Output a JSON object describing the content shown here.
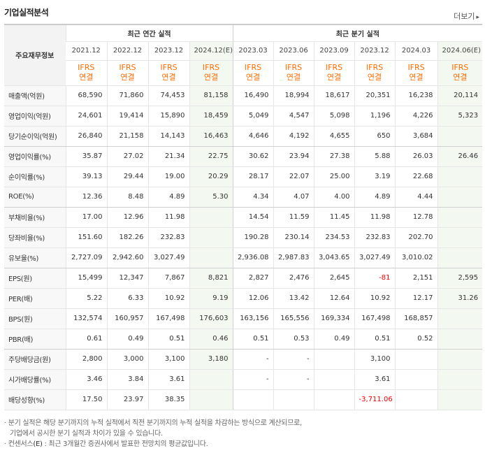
{
  "header": {
    "title": "기업실적분석",
    "more_label": "더보기",
    "more_arrow": "▸"
  },
  "table": {
    "label_header": "주요재무정보",
    "group_annual": "최근 연간 실적",
    "group_quarter": "최근 분기 실적",
    "periods": [
      "2021.12",
      "2022.12",
      "2023.12",
      "2024.12(E)",
      "2023.03",
      "2023.06",
      "2023.09",
      "2023.12",
      "2024.03",
      "2024.06(E)"
    ],
    "std_top": "IFRS",
    "std_bottom": "연결",
    "rows": [
      {
        "label": "매출액(억원)",
        "values": [
          "68,590",
          "71,860",
          "74,453",
          "81,158",
          "16,490",
          "18,994",
          "18,617",
          "20,351",
          "16,238",
          "20,114"
        ]
      },
      {
        "label": "영업이익(억원)",
        "values": [
          "24,601",
          "19,414",
          "15,890",
          "18,459",
          "5,049",
          "4,547",
          "5,098",
          "1,196",
          "4,226",
          "5,323"
        ]
      },
      {
        "label": "당기순이익(억원)",
        "values": [
          "26,840",
          "21,158",
          "14,143",
          "16,463",
          "4,646",
          "4,192",
          "4,655",
          "650",
          "3,684",
          ""
        ]
      },
      {
        "label": "영업이익률(%)",
        "values": [
          "35.87",
          "27.02",
          "21.34",
          "22.75",
          "30.62",
          "23.94",
          "27.38",
          "5.88",
          "26.03",
          "26.46"
        ]
      },
      {
        "label": "순이익률(%)",
        "values": [
          "39.13",
          "29.44",
          "19.00",
          "20.29",
          "28.17",
          "22.07",
          "25.00",
          "3.19",
          "22.68",
          ""
        ]
      },
      {
        "label": "ROE(%)",
        "values": [
          "12.36",
          "8.48",
          "4.89",
          "5.30",
          "4.34",
          "4.07",
          "4.00",
          "4.89",
          "4.44",
          ""
        ]
      },
      {
        "label": "부채비율(%)",
        "values": [
          "17.00",
          "12.96",
          "11.98",
          "",
          "14.54",
          "11.59",
          "11.45",
          "11.98",
          "12.78",
          ""
        ]
      },
      {
        "label": "당좌비율(%)",
        "values": [
          "151.60",
          "182.26",
          "232.83",
          "",
          "190.28",
          "230.14",
          "234.53",
          "232.83",
          "202.70",
          ""
        ]
      },
      {
        "label": "유보율(%)",
        "values": [
          "2,727.09",
          "2,942.60",
          "3,027.49",
          "",
          "2,936.08",
          "2,987.83",
          "3,043.65",
          "3,027.49",
          "3,010.02",
          ""
        ]
      },
      {
        "label": "EPS(원)",
        "values": [
          "15,499",
          "12,347",
          "7,867",
          "8,821",
          "2,827",
          "2,476",
          "2,645",
          "-81",
          "2,151",
          "2,595"
        ]
      },
      {
        "label": "PER(배)",
        "values": [
          "5.22",
          "6.33",
          "10.92",
          "9.19",
          "12.06",
          "13.42",
          "12.64",
          "10.92",
          "12.17",
          "31.26"
        ]
      },
      {
        "label": "BPS(원)",
        "values": [
          "132,574",
          "160,957",
          "167,498",
          "176,603",
          "163,156",
          "165,556",
          "169,334",
          "167,498",
          "168,857",
          ""
        ]
      },
      {
        "label": "PBR(배)",
        "values": [
          "0.61",
          "0.49",
          "0.51",
          "0.46",
          "0.51",
          "0.53",
          "0.49",
          "0.51",
          "0.52",
          ""
        ]
      },
      {
        "label": "주당배당금(원)",
        "values": [
          "2,800",
          "3,000",
          "3,100",
          "3,180",
          "-",
          "-",
          "",
          "3,100",
          "",
          ""
        ]
      },
      {
        "label": "시가배당률(%)",
        "values": [
          "3.46",
          "3.84",
          "3.61",
          "",
          "-",
          "-",
          "",
          "3.61",
          "",
          ""
        ]
      },
      {
        "label": "배당성향(%)",
        "values": [
          "17.50",
          "23.97",
          "38.35",
          "",
          "",
          "",
          "",
          "-3,711.06",
          "",
          ""
        ]
      }
    ]
  },
  "notes": {
    "line1": "· 분기 실적은 해당 분기까지의 누적 실적에서 직전 분기까지의 누적 실적을 차감하는 방식으로 계산되므로,",
    "line2": "기업에서 공시한 분기 실적과 차이가 있을 수 있습니다.",
    "line3_prefix": "· 컨센서스",
    "line3_e": "(E)",
    "line3_suffix": ": 최근 3개월간 증권사에서 발표한 전망치의 평균값입니다."
  }
}
